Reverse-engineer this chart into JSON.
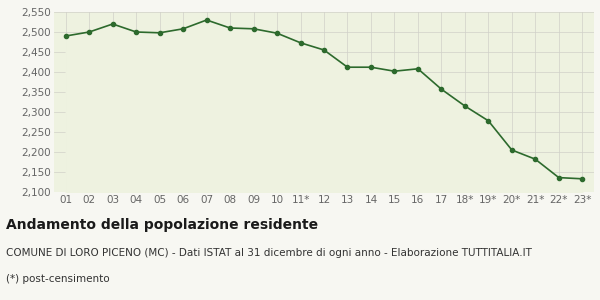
{
  "labels": [
    "01",
    "02",
    "03",
    "04",
    "05",
    "06",
    "07",
    "08",
    "09",
    "10",
    "11*",
    "12",
    "13",
    "14",
    "15",
    "16",
    "17",
    "18*",
    "19*",
    "20*",
    "21*",
    "22*",
    "23*"
  ],
  "values": [
    2490,
    2500,
    2520,
    2500,
    2498,
    2508,
    2530,
    2510,
    2508,
    2497,
    2473,
    2455,
    2412,
    2412,
    2402,
    2408,
    2357,
    2315,
    2278,
    2205,
    2182,
    2136,
    2133
  ],
  "line_color": "#2d6a2d",
  "fill_color": "#eef2e0",
  "marker_color": "#2d6a2d",
  "bg_color": "#f7f7f2",
  "grid_color": "#d0d0c8",
  "ylim": [
    2100,
    2550
  ],
  "yticks": [
    2100,
    2150,
    2200,
    2250,
    2300,
    2350,
    2400,
    2450,
    2500,
    2550
  ],
  "title": "Andamento della popolazione residente",
  "subtitle": "COMUNE DI LORO PICENO (MC) - Dati ISTAT al 31 dicembre di ogni anno - Elaborazione TUTTITALIA.IT",
  "footnote": "(*) post-censimento",
  "title_fontsize": 10,
  "subtitle_fontsize": 7.5,
  "footnote_fontsize": 7.5,
  "tick_fontsize": 7.5
}
